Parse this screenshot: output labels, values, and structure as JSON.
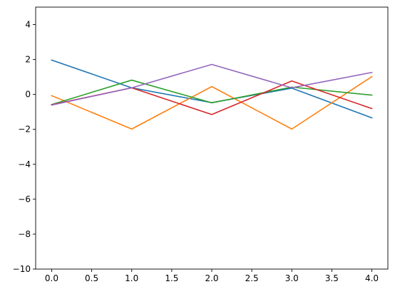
{
  "chart_data": {
    "type": "line",
    "title": "",
    "xlabel": "",
    "ylabel": "",
    "x": [
      0,
      1,
      2,
      3,
      4
    ],
    "xlim": [
      -0.2,
      4.2
    ],
    "ylim": [
      -10,
      5
    ],
    "xticks": [
      0.0,
      0.5,
      1.0,
      1.5,
      2.0,
      2.5,
      3.0,
      3.5,
      4.0
    ],
    "xtick_labels": [
      "0.0",
      "0.5",
      "1.0",
      "1.5",
      "2.0",
      "2.5",
      "3.0",
      "3.5",
      "4.0"
    ],
    "yticks": [
      -10,
      -8,
      -6,
      -4,
      -2,
      0,
      2,
      4
    ],
    "ytick_labels": [
      "−10",
      "−8",
      "−6",
      "−4",
      "−2",
      "0",
      "2",
      "4"
    ],
    "grid": false,
    "legend": "none",
    "series": [
      {
        "color": "#1f77b4",
        "values": [
          1.97,
          0.38,
          -0.47,
          0.36,
          -1.34
        ]
      },
      {
        "color": "#ff7f0e",
        "values": [
          -0.07,
          -1.98,
          0.45,
          -1.98,
          1.02
        ]
      },
      {
        "color": "#2ca02c",
        "values": [
          -0.58,
          0.82,
          -0.48,
          0.42,
          -0.04
        ]
      },
      {
        "color": "#d62728",
        "values": [
          -0.59,
          0.38,
          -1.15,
          0.77,
          -0.81
        ]
      },
      {
        "color": "#9467bd",
        "values": [
          -0.61,
          0.38,
          1.72,
          0.38,
          1.26
        ]
      }
    ]
  }
}
